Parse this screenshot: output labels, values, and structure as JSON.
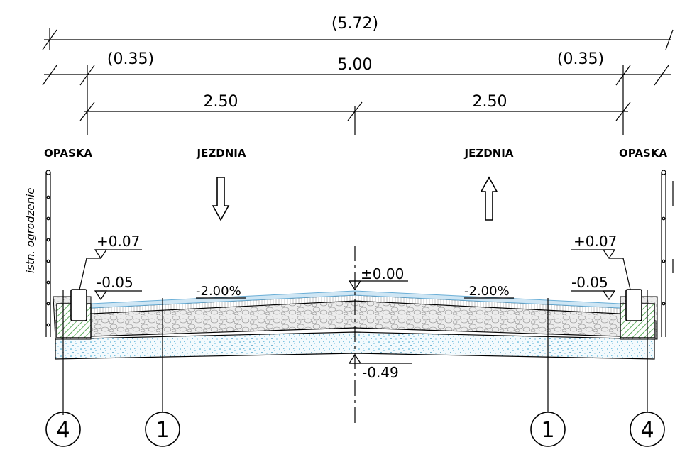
{
  "dimensions": {
    "overall": "(5.72)",
    "left_shoulder": "(0.35)",
    "carriageway": "5.00",
    "right_shoulder": "(0.35)",
    "left_lane": "2.50",
    "right_lane": "2.50"
  },
  "labels": {
    "left_opaska": "OPASKA",
    "left_jezdnia": "JEZDNIA",
    "right_jezdnia": "JEZDNIA",
    "right_opaska": "OPASKA",
    "fence": "istn. ogrodzenie"
  },
  "elevations": {
    "left_kerb_top": "+0.07",
    "left_edge": "-0.05",
    "axis_top": "±0.00",
    "right_kerb_top": "+0.07",
    "right_edge": "-0.05",
    "axis_bottom": "-0.49"
  },
  "slopes": {
    "left": "-2.00%",
    "right": "-2.00%"
  },
  "callouts": {
    "c1": "4",
    "c2": "1",
    "c3": "1",
    "c4": "4"
  },
  "colors": {
    "asphalt": "#cfe6f4",
    "asphalt_edge": "#6aaed6",
    "aggregate": "#e6e6e6",
    "subbase_dots": "#2a9fd0",
    "kerb_hatch": "#3a9a3a"
  }
}
